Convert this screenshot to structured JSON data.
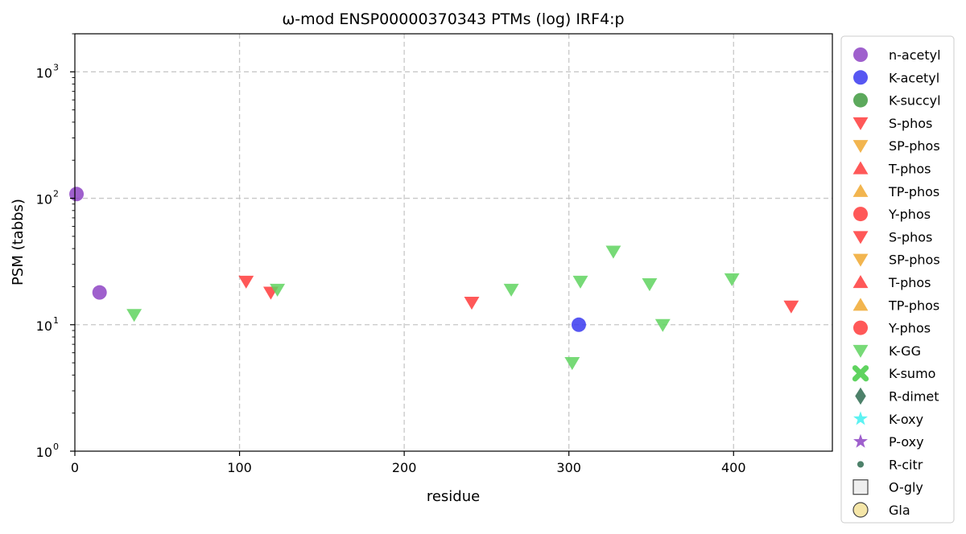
{
  "chart_data": {
    "type": "scatter",
    "title": "ω-mod ENSP00000370343 PTMs (log) IRF4:p",
    "xlabel": "residue",
    "ylabel": "PSM (tabbs)",
    "xlim": [
      0,
      460
    ],
    "ylim": [
      1,
      2000
    ],
    "yscale": "log",
    "grid": true,
    "legend_position": "outside-right",
    "x_ticks": [
      "0",
      "100",
      "200",
      "300",
      "400"
    ],
    "x_tick_values": [
      0,
      100,
      200,
      300,
      400
    ],
    "y_tick_values": [
      1,
      10,
      100,
      1000
    ],
    "y_tick_base": "10",
    "y_tick_exponents": [
      "0",
      "1",
      "2",
      "3"
    ],
    "series": [
      {
        "name": "n-acetyl",
        "marker": "circle",
        "color": "#8e44c4",
        "points": [
          {
            "x": 1,
            "y": 108
          },
          {
            "x": 15,
            "y": 18
          }
        ]
      },
      {
        "name": "K-acetyl",
        "marker": "circle",
        "color": "#3a3af0",
        "points": [
          {
            "x": 306,
            "y": 10
          }
        ]
      },
      {
        "name": "K-succyl",
        "marker": "circle",
        "color": "#3f9a3f",
        "points": []
      },
      {
        "name": "S-phos",
        "marker": "triangle-down",
        "color": "#ff3b3b",
        "points": []
      },
      {
        "name": "SP-phos",
        "marker": "triangle-down",
        "color": "#f0a830",
        "points": []
      },
      {
        "name": "T-phos",
        "marker": "triangle-up",
        "color": "#ff3b3b",
        "points": []
      },
      {
        "name": "TP-phos",
        "marker": "triangle-up",
        "color": "#f0a830",
        "points": []
      },
      {
        "name": "Y-phos",
        "marker": "circle",
        "color": "#ff3b3b",
        "points": []
      },
      {
        "name": "S-phos",
        "marker": "triangle-down",
        "color": "#ff3b3b",
        "points": [
          {
            "x": 104,
            "y": 22
          },
          {
            "x": 119,
            "y": 18
          },
          {
            "x": 241,
            "y": 15
          },
          {
            "x": 435,
            "y": 14
          }
        ]
      },
      {
        "name": "SP-phos",
        "marker": "triangle-down",
        "color": "#f0a830",
        "points": []
      },
      {
        "name": "T-phos",
        "marker": "triangle-up",
        "color": "#ff3b3b",
        "points": []
      },
      {
        "name": "TP-phos",
        "marker": "triangle-up",
        "color": "#f0a830",
        "points": []
      },
      {
        "name": "Y-phos",
        "marker": "circle",
        "color": "#ff3b3b",
        "points": []
      },
      {
        "name": "K-GG",
        "marker": "triangle-down",
        "color": "#5fd35f",
        "points": [
          {
            "x": 36,
            "y": 12
          },
          {
            "x": 123,
            "y": 19
          },
          {
            "x": 265,
            "y": 19
          },
          {
            "x": 302,
            "y": 5
          },
          {
            "x": 307,
            "y": 22
          },
          {
            "x": 327,
            "y": 38
          },
          {
            "x": 349,
            "y": 21
          },
          {
            "x": 357,
            "y": 10
          },
          {
            "x": 399,
            "y": 23
          }
        ]
      },
      {
        "name": "K-sumo",
        "marker": "x-filled",
        "color": "#5fd35f",
        "points": []
      },
      {
        "name": "R-dimet",
        "marker": "diamond",
        "color": "#2e6b50",
        "points": []
      },
      {
        "name": "K-oxy",
        "marker": "star",
        "color": "#3ff0f0",
        "points": []
      },
      {
        "name": "P-oxy",
        "marker": "star",
        "color": "#8e44c4",
        "points": []
      },
      {
        "name": "R-citr",
        "marker": "small-circle",
        "color": "#2e6b50",
        "points": []
      },
      {
        "name": "O-gly",
        "marker": "square-open",
        "color": "#eeeeee",
        "points": []
      },
      {
        "name": "Gla",
        "marker": "circle-open",
        "color": "#f5e6a8",
        "points": []
      }
    ]
  }
}
